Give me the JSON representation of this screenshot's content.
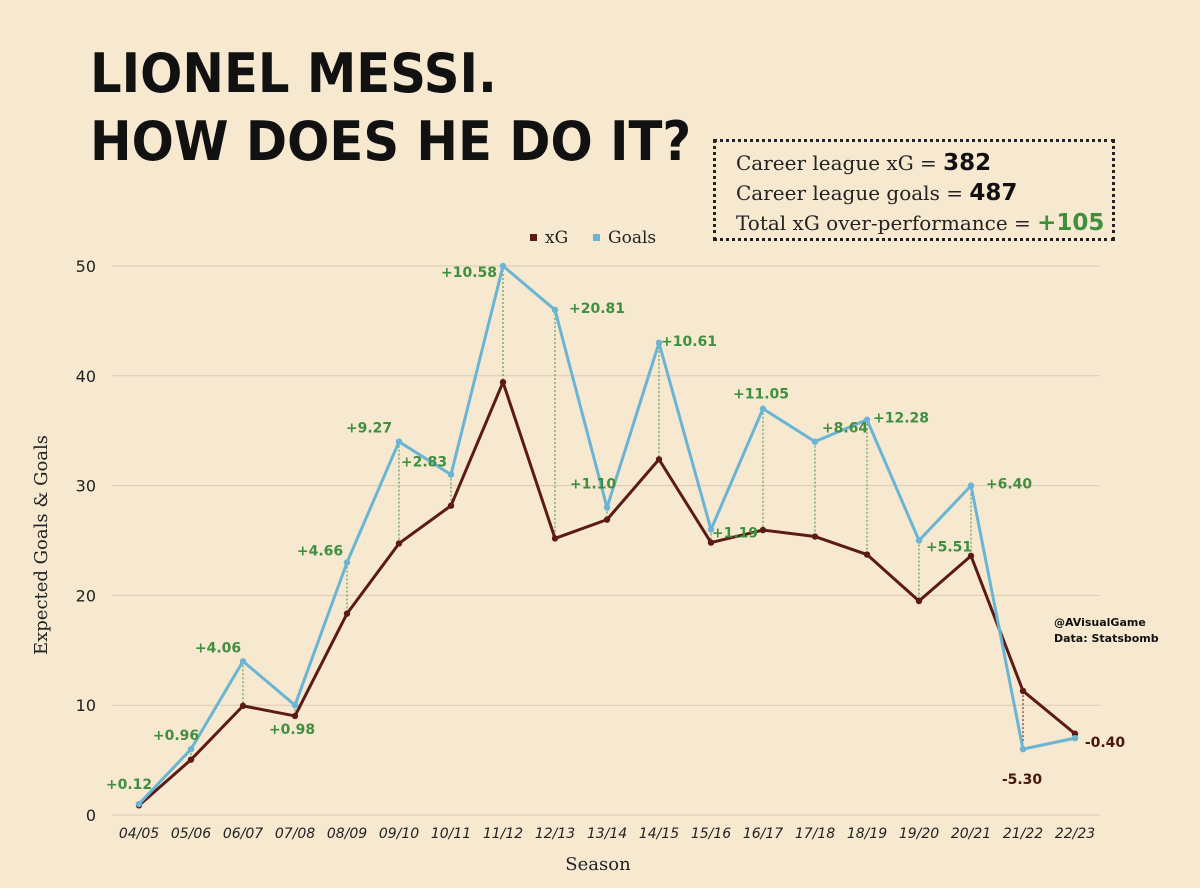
{
  "header": {
    "title_line1": "LIONEL MESSI.",
    "title_line2": "HOW DOES HE DO IT?"
  },
  "summary": {
    "xg_label": "Career league xG = ",
    "xg_value": "382",
    "goals_label": "Career league goals = ",
    "goals_value": "487",
    "over_label": "Total xG over-performance = ",
    "over_value": "+105"
  },
  "credit": {
    "handle": "@AVisualGame",
    "source": "Data: Statsbomb"
  },
  "colors": {
    "xg": "#5c1a14",
    "goals": "#6ab4d4",
    "positive": "#3f8f3f",
    "negative": "#4a1510",
    "grid": "#d9cbb5"
  },
  "chart_data": {
    "type": "line",
    "title": "",
    "xlabel": "Season",
    "ylabel": "Expected Goals & Goals",
    "ylim": [
      0,
      50
    ],
    "yticks": [
      0,
      10,
      20,
      30,
      40,
      50
    ],
    "grid": true,
    "legend_position": "top-center",
    "categories": [
      "04/05",
      "05/06",
      "06/07",
      "07/08",
      "08/09",
      "09/10",
      "10/11",
      "11/12",
      "12/13",
      "13/14",
      "14/15",
      "15/16",
      "16/17",
      "17/18",
      "18/19",
      "19/20",
      "20/21",
      "21/22",
      "22/23"
    ],
    "series": [
      {
        "name": "xG",
        "values": [
          0.88,
          5.04,
          9.94,
          9.02,
          18.34,
          24.73,
          28.17,
          39.42,
          25.19,
          26.9,
          32.39,
          24.81,
          25.95,
          25.36,
          23.72,
          19.49,
          23.6,
          11.3,
          7.4
        ]
      },
      {
        "name": "Goals",
        "values": [
          1,
          6,
          14,
          10,
          23,
          34,
          31,
          50,
          46,
          28,
          43,
          26,
          37,
          34,
          36,
          25,
          30,
          6,
          7
        ]
      }
    ],
    "annotations": [
      "+0.12",
      "+0.96",
      "+4.06",
      "+0.98",
      "+4.66",
      "+9.27",
      "+2.83",
      "+10.58",
      "+20.81",
      "+1.10",
      "+10.61",
      "+1.19",
      "+11.05",
      "+8.64",
      "+12.28",
      "+5.51",
      "+6.40",
      "-5.30",
      "-0.40"
    ]
  }
}
